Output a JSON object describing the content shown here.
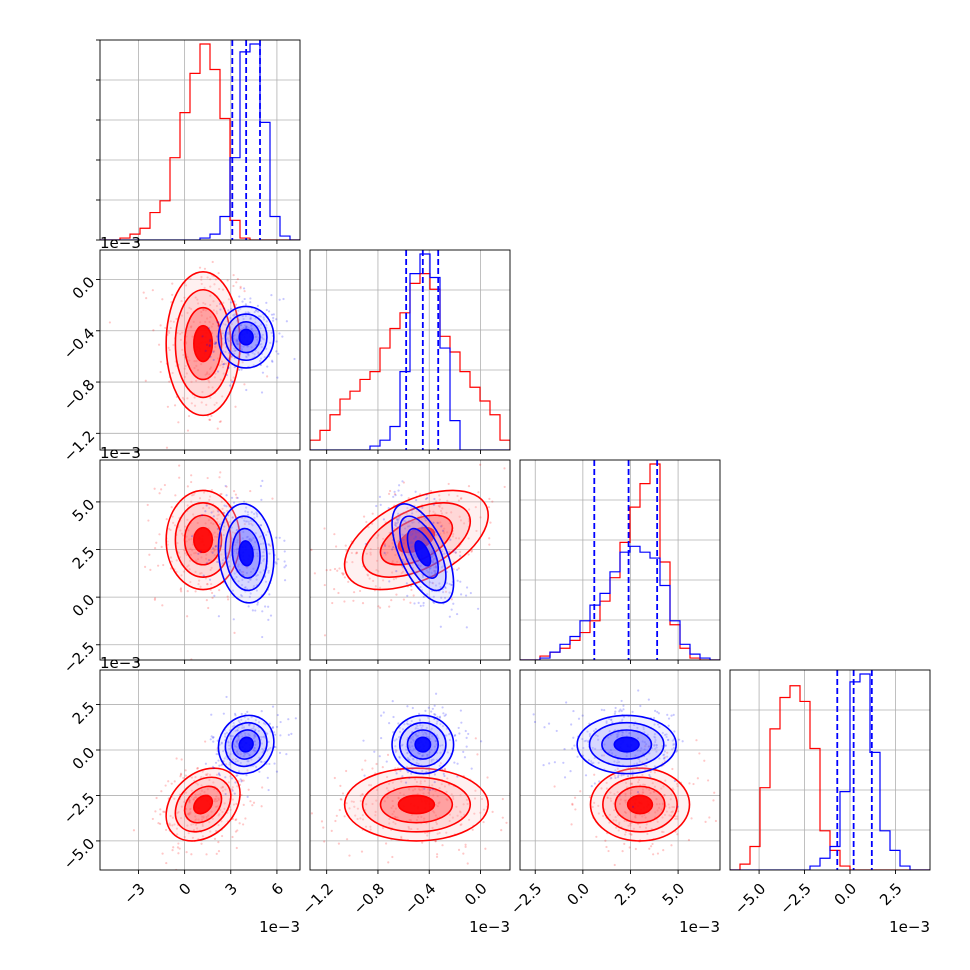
{
  "chart_data": {
    "type": "corner",
    "title": "",
    "grid": true,
    "n_params": 4,
    "axis_labels": [
      "",
      "",
      "",
      ""
    ],
    "ranges": [
      [
        -5.5,
        7.5
      ],
      [
        -1.33,
        0.23
      ],
      [
        -3.3,
        7.2
      ],
      [
        -6.6,
        4.4
      ]
    ],
    "offset_text": [
      "1e−3",
      "1e−3",
      "1e−3",
      "1e−3"
    ],
    "ticks": [
      {
        "values": [
          -3,
          0,
          3,
          6
        ],
        "labels": [
          "−3",
          "0",
          "3",
          "6"
        ]
      },
      {
        "values": [
          -1.2,
          -0.8,
          -0.4,
          0.0
        ],
        "labels": [
          "−1.2",
          "−0.8",
          "−0.4",
          "0.0"
        ]
      },
      {
        "values": [
          -2.5,
          0.0,
          2.5,
          5.0
        ],
        "labels": [
          "−2.5",
          "0.0",
          "2.5",
          "5.0"
        ]
      },
      {
        "values": [
          -5.0,
          -2.5,
          0.0,
          2.5
        ],
        "labels": [
          "−5.0",
          "−2.5",
          "0.0",
          "2.5"
        ]
      }
    ],
    "colors": {
      "series_a": "#ff0000",
      "series_b": "#0000ff",
      "grid": "#b0b0b0"
    },
    "series": [
      {
        "color": "#ff0000",
        "mean": [
          1.2,
          -0.5,
          3.0,
          -3.0
        ],
        "std": [
          1.2,
          0.28,
          1.3,
          1.0
        ],
        "corr": [
          [
            1,
            0,
            0,
            0.3
          ],
          [
            0,
            1,
            0.5,
            0
          ],
          [
            0,
            0.5,
            1,
            0
          ],
          [
            0.3,
            0,
            0,
            1
          ]
        ],
        "histograms": [
          {
            "edges": [
              -5.5,
              -4.85,
              -4.2,
              -3.55,
              -2.9,
              -2.25,
              -1.6,
              -0.95,
              -0.3,
              0.35,
              1.0,
              1.65,
              2.3,
              2.95,
              3.6,
              4.25,
              4.9,
              5.55,
              6.2,
              6.85,
              7.5
            ],
            "counts": [
              0.0,
              0.0,
              0.01,
              0.03,
              0.06,
              0.14,
              0.2,
              0.42,
              0.65,
              0.85,
              1.0,
              0.87,
              0.62,
              0.1,
              0.01,
              0.0,
              0.0,
              0.0,
              0.0,
              0.0
            ]
          },
          {
            "edges": [
              -1.33,
              -1.252,
              -1.174,
              -1.096,
              -1.018,
              -0.94,
              -0.862,
              -0.784,
              -0.706,
              -0.628,
              -0.55,
              -0.472,
              -0.394,
              -0.316,
              -0.238,
              -0.16,
              -0.082,
              -0.004,
              0.074,
              0.152,
              0.23
            ],
            "counts": [
              0.05,
              0.1,
              0.18,
              0.26,
              0.3,
              0.36,
              0.4,
              0.52,
              0.62,
              0.7,
              0.85,
              0.9,
              0.82,
              0.58,
              0.5,
              0.4,
              0.32,
              0.25,
              0.18,
              0.05
            ]
          },
          {
            "edges": [
              -3.3,
              -2.775,
              -2.25,
              -1.725,
              -1.2,
              -0.675,
              -0.15,
              0.375,
              0.9,
              1.425,
              1.95,
              2.475,
              3.0,
              3.525,
              4.05,
              4.575,
              5.1,
              5.625,
              6.15,
              6.675,
              7.2
            ],
            "counts": [
              0.0,
              0.0,
              0.02,
              0.04,
              0.06,
              0.1,
              0.14,
              0.2,
              0.3,
              0.42,
              0.6,
              0.78,
              0.9,
              1.0,
              0.5,
              0.18,
              0.06,
              0.01,
              0.0,
              0.0
            ]
          },
          {
            "edges": [
              -6.6,
              -6.05,
              -5.5,
              -4.95,
              -4.4,
              -3.85,
              -3.3,
              -2.75,
              -2.2,
              -1.65,
              -1.1,
              -0.55,
              0.0,
              0.55,
              1.1,
              1.65,
              2.2,
              2.75,
              3.3,
              3.85,
              4.4
            ],
            "counts": [
              0.0,
              0.03,
              0.12,
              0.42,
              0.72,
              0.88,
              0.94,
              0.86,
              0.62,
              0.2,
              0.1,
              0.02,
              0.0,
              0.0,
              0.0,
              0.0,
              0.0,
              0.0,
              0.0,
              0.0
            ]
          }
        ]
      },
      {
        "color": "#0000ff",
        "mean": [
          4.0,
          -0.45,
          2.3,
          0.3
        ],
        "std": [
          0.9,
          0.12,
          1.3,
          0.8
        ],
        "corr": [
          [
            1,
            0,
            -0.1,
            0.1
          ],
          [
            0,
            1,
            -0.6,
            0
          ],
          [
            -0.1,
            -0.6,
            1,
            0
          ],
          [
            0.1,
            0,
            0,
            1
          ]
        ],
        "quantiles": [
          [
            3.1,
            4.0,
            4.9
          ],
          [
            -0.58,
            -0.45,
            -0.33
          ],
          [
            0.6,
            2.4,
            3.9
          ],
          [
            -0.7,
            0.2,
            1.2
          ]
        ],
        "histograms": [
          {
            "edges": [
              -5.5,
              -4.85,
              -4.2,
              -3.55,
              -2.9,
              -2.25,
              -1.6,
              -0.95,
              -0.3,
              0.35,
              1.0,
              1.65,
              2.3,
              2.95,
              3.6,
              4.25,
              4.9,
              5.55,
              6.2,
              6.85,
              7.5
            ],
            "counts": [
              0.0,
              0.0,
              0.0,
              0.0,
              0.0,
              0.0,
              0.0,
              0.0,
              0.0,
              0.0,
              0.01,
              0.03,
              0.12,
              0.42,
              0.96,
              1.0,
              0.6,
              0.12,
              0.02,
              0.0
            ]
          },
          {
            "edges": [
              -1.33,
              -1.252,
              -1.174,
              -1.096,
              -1.018,
              -0.94,
              -0.862,
              -0.784,
              -0.706,
              -0.628,
              -0.55,
              -0.472,
              -0.394,
              -0.316,
              -0.238,
              -0.16,
              -0.082,
              -0.004,
              0.074,
              0.152,
              0.23
            ],
            "counts": [
              0.0,
              0.0,
              0.0,
              0.0,
              0.0,
              0.0,
              0.02,
              0.05,
              0.12,
              0.4,
              0.9,
              1.0,
              0.88,
              0.52,
              0.15,
              0.0,
              0.0,
              0.0,
              0.0,
              0.0
            ]
          },
          {
            "edges": [
              -3.3,
              -2.775,
              -2.25,
              -1.725,
              -1.2,
              -0.675,
              -0.15,
              0.375,
              0.9,
              1.425,
              1.95,
              2.475,
              3.0,
              3.525,
              4.05,
              4.575,
              5.1,
              5.625,
              6.15,
              6.675,
              7.2
            ],
            "counts": [
              0.0,
              0.0,
              0.01,
              0.04,
              0.08,
              0.12,
              0.2,
              0.28,
              0.34,
              0.45,
              0.55,
              0.58,
              0.55,
              0.52,
              0.38,
              0.2,
              0.08,
              0.03,
              0.01,
              0.0
            ]
          },
          {
            "edges": [
              -6.6,
              -6.05,
              -5.5,
              -4.95,
              -4.4,
              -3.85,
              -3.3,
              -2.75,
              -2.2,
              -1.65,
              -1.1,
              -0.55,
              0.0,
              0.55,
              1.1,
              1.65,
              2.2,
              2.75,
              3.3,
              3.85,
              4.4
            ],
            "counts": [
              0.0,
              0.0,
              0.0,
              0.0,
              0.0,
              0.0,
              0.0,
              0.0,
              0.02,
              0.06,
              0.12,
              0.4,
              0.96,
              1.0,
              0.6,
              0.2,
              0.1,
              0.02,
              0.0,
              0.0
            ]
          }
        ]
      }
    ]
  }
}
